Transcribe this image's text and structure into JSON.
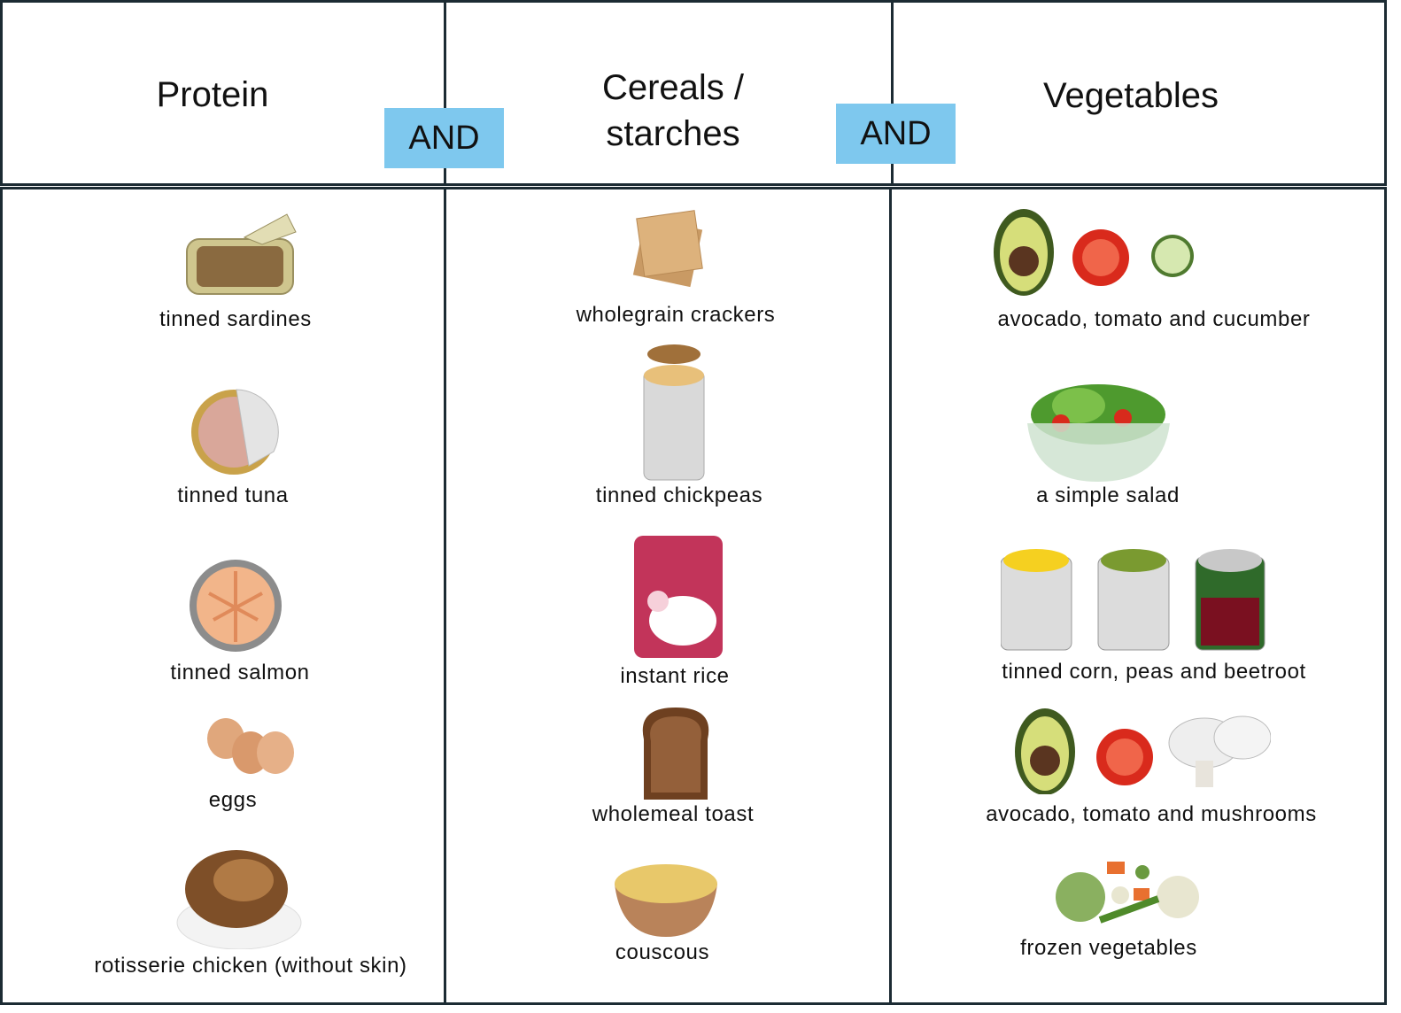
{
  "header": {
    "titles": [
      "Protein",
      "Cereals / starches",
      "Vegetables"
    ],
    "connectors": [
      "AND",
      "AND"
    ]
  },
  "columns": [
    {
      "items": [
        "tinned sardines",
        "tinned tuna",
        "tinned salmon",
        "eggs",
        "rotisserie chicken (without skin)"
      ]
    },
    {
      "items": [
        "wholegrain crackers",
        "tinned chickpeas",
        "instant rice",
        "wholemeal toast",
        "couscous"
      ]
    },
    {
      "items": [
        "avocado, tomato and cucumber",
        "a simple salad",
        "tinned corn, peas and beetroot",
        "avocado, tomato and mushrooms",
        "frozen vegetables"
      ]
    }
  ]
}
